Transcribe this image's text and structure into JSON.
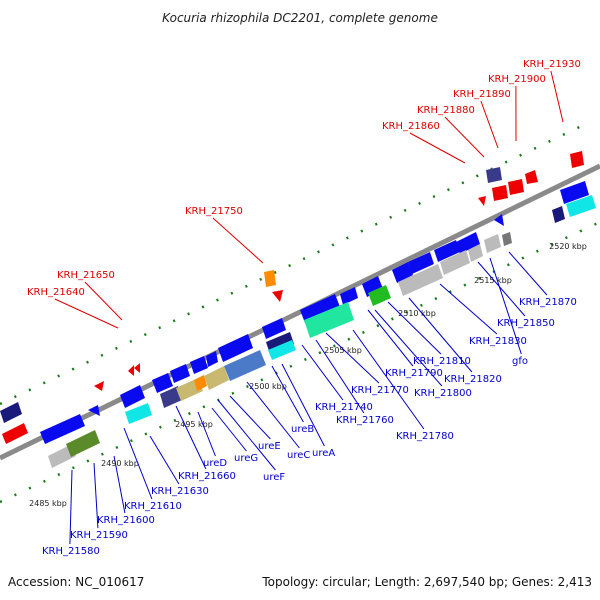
{
  "title": "Kocuria rhizophila DC2201, complete genome",
  "footer": {
    "accession": "Accession: NC_010617",
    "summary": "Topology: circular; Length: 2,697,540 bp; Genes: 2,413"
  },
  "colors": {
    "backbone": "#8a8a8a",
    "gene_blue": "#0a0af0",
    "label_red": "#dd0000",
    "label_blue": "#0000cc",
    "dot_green": "#1a7a1a"
  },
  "ticks": [
    "2485 kbp",
    "2490 kbp",
    "2495 kbp",
    "2500 kbp",
    "2505 kbp",
    "2510 kbp",
    "2515 kbp",
    "2520 kbp"
  ],
  "labels_red": [
    "KRH_21640",
    "KRH_21650",
    "KRH_21750",
    "KRH_21860",
    "KRH_21880",
    "KRH_21890",
    "KRH_21900",
    "KRH_21930"
  ],
  "labels_blue": [
    "KRH_21580",
    "KRH_21590",
    "KRH_21600",
    "KRH_21610",
    "KRH_21630",
    "KRH_21660",
    "ureD",
    "ureG",
    "ureF",
    "ureE",
    "ureC",
    "ureB",
    "ureA",
    "KRH_21740",
    "KRH_21760",
    "KRH_21770",
    "KRH_21780",
    "KRH_21790",
    "KRH_21800",
    "KRH_21810",
    "KRH_21820",
    "KRH_21830",
    "gfo",
    "KRH_21850",
    "KRH_21870"
  ]
}
